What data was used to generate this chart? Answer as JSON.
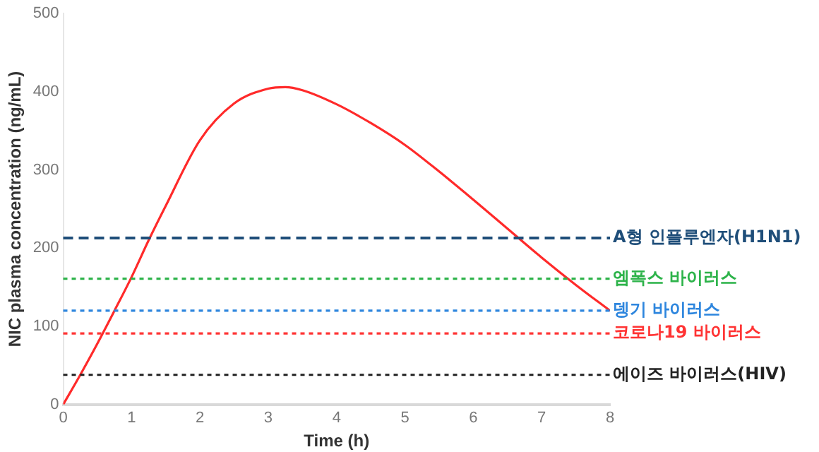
{
  "chart_data": {
    "type": "line",
    "xlabel": "Time (h)",
    "ylabel": "NIC plasma concentration (ng/mL)",
    "series": [
      {
        "color": "#ff2a2a",
        "x": [
          0,
          0.25,
          0.5,
          0.75,
          1,
          1.25,
          1.5,
          2,
          2.5,
          3,
          3.25,
          3.5,
          4,
          4.5,
          5,
          5.5,
          6,
          6.5,
          7,
          7.5,
          8
        ],
        "values": [
          0,
          38,
          78,
          120,
          163,
          210,
          254,
          338,
          385,
          404,
          406,
          402,
          384,
          360,
          332,
          298,
          262,
          225,
          188,
          153,
          120
        ]
      }
    ],
    "xlim": [
      0,
      8
    ],
    "xticks": [
      0,
      1,
      2,
      3,
      4,
      5,
      6,
      7,
      8
    ],
    "ylim": [
      0,
      500
    ],
    "yticks": [
      0,
      100,
      200,
      300,
      400,
      500
    ],
    "grid": false,
    "legend": false,
    "marker": "none",
    "line_style": "solid",
    "ref_lines": [
      {
        "axis": "y",
        "value": 213,
        "label": "A형 인플루엔자(H1N1)",
        "color": "#1f4e79",
        "line_style": "dashed"
      },
      {
        "axis": "y",
        "value": 161,
        "label": "엠폭스 바이러스",
        "color": "#2db34a",
        "line_style": "dotted"
      },
      {
        "axis": "y",
        "value": 120,
        "label": "뎅기 바이러스",
        "color": "#2e86de",
        "line_style": "dotted"
      },
      {
        "axis": "y",
        "value": 91,
        "label": "코로나19 바이러스",
        "color": "#ff3333",
        "line_style": "dotted"
      },
      {
        "axis": "y",
        "value": 38,
        "label": "에이즈 바이러스(HIV)",
        "color": "#222222",
        "line_style": "dotted"
      }
    ]
  }
}
